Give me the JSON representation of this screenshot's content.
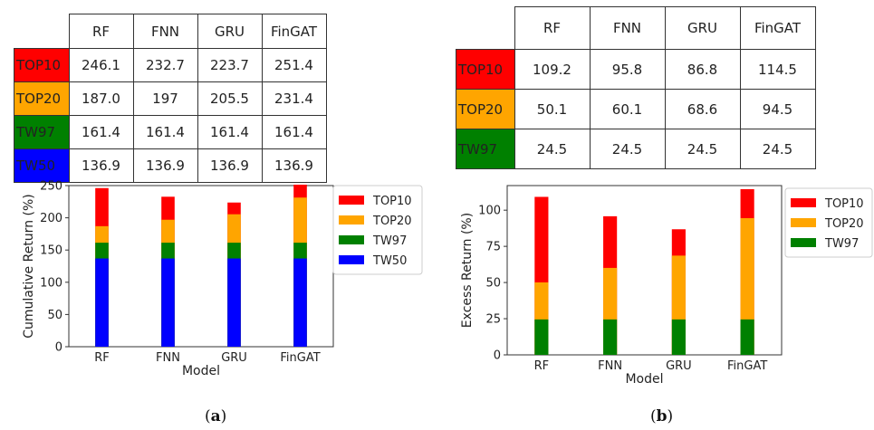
{
  "colors": {
    "TOP10": "#ff0000",
    "TOP20": "#ffa500",
    "TW97": "#008000",
    "TW50": "#0000ff"
  },
  "panels": [
    {
      "label": "a",
      "table": {
        "headers": [
          "RF",
          "FNN",
          "GRU",
          "FinGAT"
        ],
        "rows": [
          {
            "name": "TOP10",
            "values": [
              "246.1",
              "232.7",
              "223.7",
              "251.4"
            ]
          },
          {
            "name": "TOP20",
            "values": [
              "187.0",
              "197",
              "205.5",
              "231.4"
            ]
          },
          {
            "name": "TW97",
            "values": [
              "161.4",
              "161.4",
              "161.4",
              "161.4"
            ]
          },
          {
            "name": "TW50",
            "values": [
              "136.9",
              "136.9",
              "136.9",
              "136.9"
            ]
          }
        ]
      }
    },
    {
      "label": "b",
      "table": {
        "headers": [
          "RF",
          "FNN",
          "GRU",
          "FinGAT"
        ],
        "rows": [
          {
            "name": "TOP10",
            "values": [
              "109.2",
              "95.8",
              "86.8",
              "114.5"
            ]
          },
          {
            "name": "TOP20",
            "values": [
              "50.1",
              "60.1",
              "68.6",
              "94.5"
            ]
          },
          {
            "name": "TW97",
            "values": [
              "24.5",
              "24.5",
              "24.5",
              "24.5"
            ]
          }
        ]
      }
    }
  ],
  "chart_data": [
    {
      "type": "bar",
      "categories": [
        "RF",
        "FNN",
        "GRU",
        "FinGAT"
      ],
      "series": [
        {
          "name": "TOP10",
          "values": [
            246.1,
            232.7,
            223.7,
            251.4
          ]
        },
        {
          "name": "TOP20",
          "values": [
            187.0,
            197,
            205.5,
            231.4
          ]
        },
        {
          "name": "TW97",
          "values": [
            161.4,
            161.4,
            161.4,
            161.4
          ]
        },
        {
          "name": "TW50",
          "values": [
            136.9,
            136.9,
            136.9,
            136.9
          ]
        }
      ],
      "overlaid": true,
      "xlabel": "Model",
      "ylabel": "Cumulative Return (%)",
      "ylim": [
        0,
        250
      ],
      "yticks": [
        0,
        50,
        100,
        150,
        200,
        250
      ],
      "legend": "right",
      "grid": false
    },
    {
      "type": "bar",
      "categories": [
        "RF",
        "FNN",
        "GRU",
        "FinGAT"
      ],
      "series": [
        {
          "name": "TOP10",
          "values": [
            109.2,
            95.8,
            86.8,
            114.5
          ]
        },
        {
          "name": "TOP20",
          "values": [
            50.1,
            60.1,
            68.6,
            94.5
          ]
        },
        {
          "name": "TW97",
          "values": [
            24.5,
            24.5,
            24.5,
            24.5
          ]
        }
      ],
      "overlaid": true,
      "xlabel": "Model",
      "ylabel": "Excess Return (%)",
      "ylim": [
        0,
        117
      ],
      "yticks": [
        0,
        25,
        50,
        75,
        100
      ],
      "legend": "right",
      "grid": false
    }
  ]
}
